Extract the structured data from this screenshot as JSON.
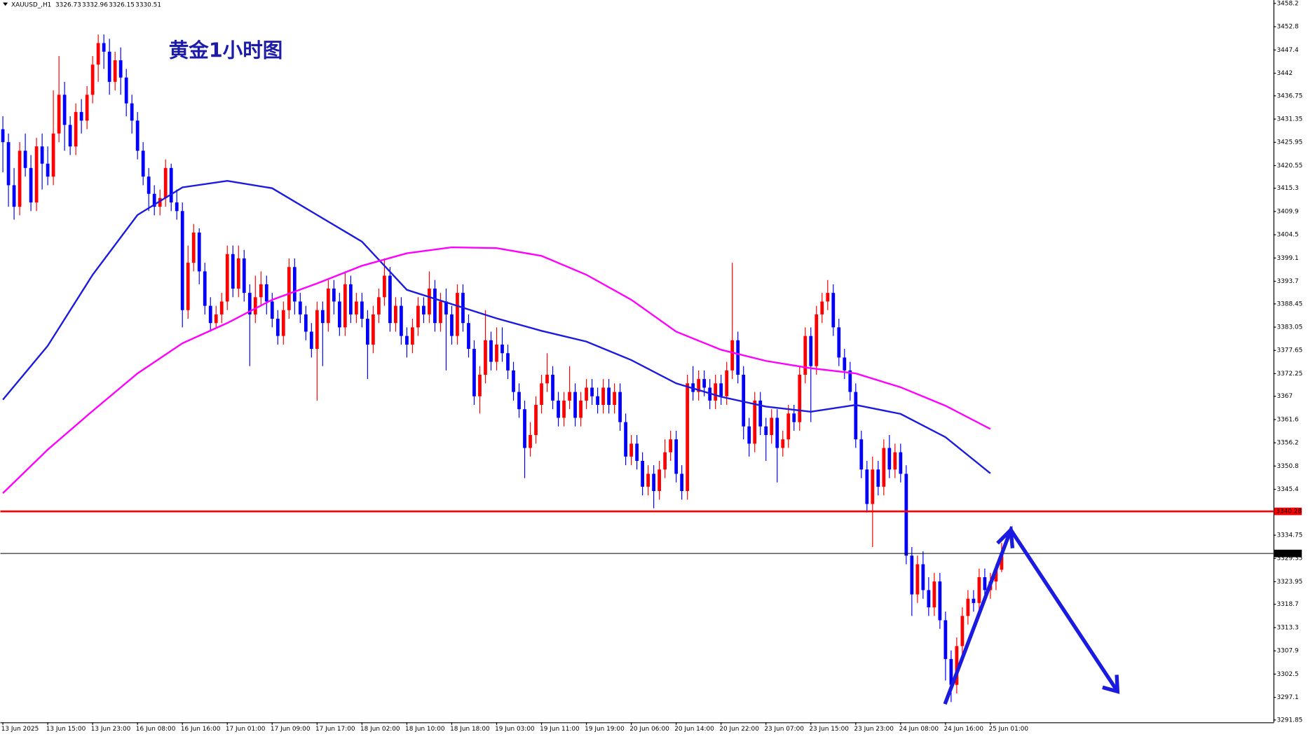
{
  "chart_data": {
    "type": "candlestick",
    "title": "黄金1小时图",
    "symbol": "XAUUSD_,H1",
    "up_color": "#ff0000",
    "down_color": "#0000ff",
    "categories": [
      "13 Jun 2025",
      "13 Jun 15:00",
      "13 Jun 23:00",
      "16 Jun 08:00",
      "16 Jun 16:00",
      "17 Jun 01:00",
      "17 Jun 09:00",
      "17 Jun 17:00",
      "18 Jun 02:00",
      "18 Jun 10:00",
      "18 Jun 18:00",
      "19 Jun 03:00",
      "19 Jun 11:00",
      "19 Jun 19:00",
      "20 Jun 06:00",
      "20 Jun 14:00",
      "20 Jun 22:00",
      "23 Jun 07:00",
      "23 Jun 15:00",
      "23 Jun 23:00",
      "24 Jun 08:00",
      "24 Jun 16:00",
      "25 Jun 01:00"
    ],
    "ohlc": [
      [
        3429,
        3432,
        3419,
        3426
      ],
      [
        3426,
        3428,
        3411,
        3416
      ],
      [
        3416,
        3420,
        3408,
        3411
      ],
      [
        3411,
        3426,
        3409,
        3424
      ],
      [
        3424,
        3428,
        3418,
        3420
      ],
      [
        3420,
        3423,
        3410,
        3412
      ],
      [
        3412,
        3427,
        3410,
        3425
      ],
      [
        3425,
        3428,
        3415,
        3421
      ],
      [
        3421,
        3425,
        3416,
        3418
      ],
      [
        3418,
        3438,
        3416,
        3428
      ],
      [
        3428,
        3446,
        3426,
        3437
      ],
      [
        3437,
        3440,
        3424,
        3430
      ],
      [
        3430,
        3432,
        3423,
        3425
      ],
      [
        3425,
        3435,
        3423,
        3433
      ],
      [
        3433,
        3436,
        3428,
        3431
      ],
      [
        3431,
        3439,
        3429,
        3437
      ],
      [
        3437,
        3446,
        3435,
        3444
      ],
      [
        3444,
        3451,
        3440,
        3449
      ],
      [
        3449,
        3451,
        3443,
        3447
      ],
      [
        3447,
        3450,
        3437,
        3440
      ],
      [
        3440,
        3447,
        3438,
        3445
      ],
      [
        3445,
        3448,
        3437,
        3441
      ],
      [
        3441,
        3443,
        3432,
        3435
      ],
      [
        3435,
        3437,
        3428,
        3431
      ],
      [
        3431,
        3433,
        3422,
        3424
      ],
      [
        3424,
        3426,
        3416,
        3418
      ],
      [
        3418,
        3420,
        3410,
        3414
      ],
      [
        3414,
        3416,
        3409,
        3411
      ],
      [
        3411,
        3415,
        3409,
        3413
      ],
      [
        3413,
        3422,
        3411,
        3420
      ],
      [
        3420,
        3421,
        3410,
        3412
      ],
      [
        3412,
        3415,
        3408,
        3410
      ],
      [
        3410,
        3412,
        3383,
        3387
      ],
      [
        3387,
        3402,
        3385,
        3398
      ],
      [
        3398,
        3407,
        3396,
        3405
      ],
      [
        3405,
        3406,
        3393,
        3396
      ],
      [
        3396,
        3398,
        3386,
        3388
      ],
      [
        3388,
        3390,
        3382,
        3384
      ],
      [
        3384,
        3388,
        3383,
        3386
      ],
      [
        3386,
        3391,
        3384,
        3389
      ],
      [
        3389,
        3402,
        3387,
        3400
      ],
      [
        3400,
        3402,
        3390,
        3392
      ],
      [
        3392,
        3402,
        3390,
        3399
      ],
      [
        3399,
        3401,
        3389,
        3391
      ],
      [
        3391,
        3393,
        3374,
        3386
      ],
      [
        3386,
        3395,
        3384,
        3390
      ],
      [
        3390,
        3396,
        3388,
        3393
      ],
      [
        3393,
        3395,
        3386,
        3389
      ],
      [
        3389,
        3391,
        3383,
        3385
      ],
      [
        3385,
        3387,
        3379,
        3381
      ],
      [
        3381,
        3389,
        3379,
        3387
      ],
      [
        3387,
        3399,
        3385,
        3397
      ],
      [
        3397,
        3399,
        3386,
        3389
      ],
      [
        3389,
        3391,
        3384,
        3386
      ],
      [
        3386,
        3388,
        3380,
        3382
      ],
      [
        3382,
        3384,
        3376,
        3378
      ],
      [
        3378,
        3389,
        3366,
        3387
      ],
      [
        3387,
        3389,
        3374,
        3384
      ],
      [
        3384,
        3394,
        3382,
        3392
      ],
      [
        3392,
        3394,
        3386,
        3389
      ],
      [
        3389,
        3391,
        3381,
        3383
      ],
      [
        3383,
        3396,
        3381,
        3393
      ],
      [
        3393,
        3395,
        3384,
        3386
      ],
      [
        3386,
        3391,
        3384,
        3389
      ],
      [
        3389,
        3391,
        3383,
        3385
      ],
      [
        3385,
        3387,
        3371,
        3379
      ],
      [
        3379,
        3388,
        3377,
        3386
      ],
      [
        3386,
        3392,
        3384,
        3390
      ],
      [
        3390,
        3399,
        3388,
        3395
      ],
      [
        3395,
        3397,
        3382,
        3384
      ],
      [
        3384,
        3390,
        3382,
        3388
      ],
      [
        3388,
        3390,
        3379,
        3381
      ],
      [
        3381,
        3383,
        3376,
        3379
      ],
      [
        3379,
        3385,
        3377,
        3383
      ],
      [
        3383,
        3390,
        3381,
        3388
      ],
      [
        3388,
        3390,
        3384,
        3386
      ],
      [
        3386,
        3396,
        3384,
        3392
      ],
      [
        3392,
        3394,
        3382,
        3384
      ],
      [
        3384,
        3391,
        3382,
        3389
      ],
      [
        3389,
        3392,
        3373,
        3386
      ],
      [
        3386,
        3388,
        3379,
        3381
      ],
      [
        3381,
        3393,
        3379,
        3391
      ],
      [
        3391,
        3393,
        3382,
        3384
      ],
      [
        3384,
        3386,
        3376,
        3378
      ],
      [
        3378,
        3380,
        3365,
        3367
      ],
      [
        3367,
        3374,
        3363,
        3372
      ],
      [
        3372,
        3387,
        3370,
        3380
      ],
      [
        3380,
        3382,
        3373,
        3375
      ],
      [
        3375,
        3383,
        3373,
        3379
      ],
      [
        3379,
        3383,
        3375,
        3377
      ],
      [
        3377,
        3379,
        3371,
        3373
      ],
      [
        3373,
        3375,
        3366,
        3368
      ],
      [
        3368,
        3370,
        3362,
        3364
      ],
      [
        3364,
        3366,
        3348,
        3355
      ],
      [
        3355,
        3361,
        3353,
        3358
      ],
      [
        3358,
        3367,
        3356,
        3365
      ],
      [
        3365,
        3372,
        3363,
        3370
      ],
      [
        3370,
        3377,
        3368,
        3372
      ],
      [
        3372,
        3374,
        3364,
        3366
      ],
      [
        3366,
        3368,
        3360,
        3362
      ],
      [
        3362,
        3368,
        3360,
        3366
      ],
      [
        3366,
        3374,
        3364,
        3368
      ],
      [
        3368,
        3370,
        3360,
        3362
      ],
      [
        3362,
        3368,
        3360,
        3366
      ],
      [
        3366,
        3371,
        3364,
        3369
      ],
      [
        3369,
        3371,
        3365,
        3367
      ],
      [
        3367,
        3369,
        3363,
        3365
      ],
      [
        3365,
        3371,
        3363,
        3369
      ],
      [
        3369,
        3371,
        3363,
        3365
      ],
      [
        3365,
        3370,
        3363,
        3368
      ],
      [
        3368,
        3370,
        3359,
        3361
      ],
      [
        3361,
        3363,
        3351,
        3353
      ],
      [
        3353,
        3358,
        3351,
        3356
      ],
      [
        3356,
        3358,
        3350,
        3352
      ],
      [
        3352,
        3354,
        3344,
        3346
      ],
      [
        3346,
        3351,
        3344,
        3349
      ],
      [
        3349,
        3351,
        3341,
        3345
      ],
      [
        3345,
        3352,
        3343,
        3350
      ],
      [
        3350,
        3357,
        3348,
        3354
      ],
      [
        3354,
        3359,
        3352,
        3357
      ],
      [
        3357,
        3359,
        3347,
        3349
      ],
      [
        3349,
        3351,
        3343,
        3345
      ],
      [
        3345,
        3372,
        3343,
        3370
      ],
      [
        3370,
        3374,
        3366,
        3368
      ],
      [
        3368,
        3373,
        3366,
        3371
      ],
      [
        3371,
        3373,
        3367,
        3369
      ],
      [
        3369,
        3371,
        3364,
        3366
      ],
      [
        3366,
        3372,
        3364,
        3370
      ],
      [
        3370,
        3372,
        3365,
        3367
      ],
      [
        3367,
        3375,
        3365,
        3373
      ],
      [
        3373,
        3398,
        3371,
        3380
      ],
      [
        3380,
        3382,
        3370,
        3372
      ],
      [
        3372,
        3374,
        3357,
        3360
      ],
      [
        3360,
        3362,
        3353,
        3356
      ],
      [
        3356,
        3368,
        3354,
        3366
      ],
      [
        3366,
        3368,
        3358,
        3360
      ],
      [
        3360,
        3362,
        3352,
        3358
      ],
      [
        3358,
        3364,
        3356,
        3362
      ],
      [
        3362,
        3364,
        3347,
        3355
      ],
      [
        3355,
        3359,
        3353,
        3357
      ],
      [
        3357,
        3365,
        3355,
        3363
      ],
      [
        3363,
        3365,
        3359,
        3361
      ],
      [
        3361,
        3374,
        3359,
        3372
      ],
      [
        3372,
        3383,
        3370,
        3381
      ],
      [
        3381,
        3383,
        3361,
        3374
      ],
      [
        3374,
        3388,
        3372,
        3386
      ],
      [
        3386,
        3391,
        3384,
        3389
      ],
      [
        3389,
        3394,
        3387,
        3391
      ],
      [
        3391,
        3393,
        3381,
        3383
      ],
      [
        3383,
        3385,
        3374,
        3376
      ],
      [
        3376,
        3378,
        3371,
        3373
      ],
      [
        3373,
        3375,
        3366,
        3368
      ],
      [
        3368,
        3370,
        3355,
        3357
      ],
      [
        3357,
        3359,
        3348,
        3350
      ],
      [
        3350,
        3352,
        3340,
        3342
      ],
      [
        3342,
        3353,
        3332,
        3350
      ],
      [
        3350,
        3352,
        3344,
        3346
      ],
      [
        3346,
        3357,
        3344,
        3355
      ],
      [
        3355,
        3358,
        3348,
        3350
      ],
      [
        3350,
        3356,
        3348,
        3354
      ],
      [
        3354,
        3356,
        3347,
        3349
      ],
      [
        3349,
        3351,
        3328,
        3330
      ],
      [
        3330,
        3332,
        3316,
        3321
      ],
      [
        3321,
        3330,
        3319,
        3328
      ],
      [
        3328,
        3331,
        3320,
        3322
      ],
      [
        3322,
        3325,
        3316,
        3318
      ],
      [
        3318,
        3326,
        3316,
        3324
      ],
      [
        3324,
        3326,
        3313,
        3315
      ],
      [
        3315,
        3317,
        3301,
        3306
      ],
      [
        3306,
        3308,
        3296,
        3300
      ],
      [
        3300,
        3311,
        3298,
        3309
      ],
      [
        3309,
        3318,
        3307,
        3316
      ],
      [
        3316,
        3322,
        3314,
        3320
      ],
      [
        3320,
        3322,
        3317,
        3319
      ],
      [
        3319,
        3327,
        3317,
        3325
      ],
      [
        3325,
        3327,
        3320,
        3322
      ],
      [
        3322,
        3326,
        3320,
        3324
      ],
      [
        3324,
        3328,
        3322,
        3326.73
      ],
      [
        3326.73,
        3332.96,
        3326.15,
        3330.51
      ]
    ],
    "series": [
      {
        "color": "#1a1ae0",
        "values": [
          3366.2,
          3378.7,
          3395.2,
          3409.1,
          3415.5,
          3417.0,
          3415.3,
          3409.1,
          3402.9,
          3391.7,
          3388.4,
          3385.1,
          3382.2,
          3379.7,
          3375.4,
          3370.0,
          3366.9,
          3364.6,
          3363.4,
          3365.0,
          3362.9,
          3357.5,
          3349.1
        ]
      },
      {
        "color": "#ff00ff",
        "values": [
          3344.5,
          3354.6,
          3363.6,
          3372.3,
          3379.3,
          3384.0,
          3389.4,
          3393.2,
          3397.3,
          3400.2,
          3401.6,
          3401.4,
          3399.6,
          3395.2,
          3389.4,
          3382.0,
          3377.8,
          3375.2,
          3373.5,
          3372.3,
          3369.1,
          3364.8,
          3359.4
        ]
      }
    ],
    "hlines": [
      {
        "value": 3340.28,
        "color": "#ff0000"
      },
      {
        "value": 3330.51,
        "color": "#000000"
      }
    ],
    "ylim": [
      3291.3,
      3459.0
    ],
    "yticks": [
      3458.2,
      3452.8,
      3447.4,
      3442.0,
      3436.75,
      3431.35,
      3425.95,
      3420.55,
      3415.3,
      3409.9,
      3404.5,
      3399.1,
      3393.7,
      3388.45,
      3383.05,
      3377.65,
      3372.25,
      3367.0,
      3361.6,
      3356.2,
      3350.8,
      3345.4,
      3334.75,
      3329.35,
      3323.95,
      3318.7,
      3313.3,
      3307.9,
      3302.5,
      3297.1,
      3291.85
    ]
  }
}
